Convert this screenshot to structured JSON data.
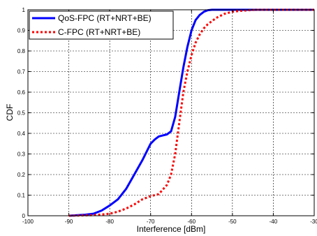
{
  "chart_data": {
    "type": "line",
    "title": "",
    "xlabel": "Interference [dBm]",
    "ylabel": "CDF",
    "xlim": [
      -100,
      -30
    ],
    "ylim": [
      0,
      1
    ],
    "x_ticks": [
      -100,
      -90,
      -80,
      -70,
      -60,
      -50,
      -40,
      -30
    ],
    "x_tick_labels": [
      "-100",
      "-90",
      "-80",
      "-70",
      "-60",
      "-50",
      "-40",
      "-30"
    ],
    "y_ticks": [
      0,
      0.1,
      0.2,
      0.3,
      0.4,
      0.5,
      0.6,
      0.7,
      0.8,
      0.9,
      1
    ],
    "y_tick_labels": [
      "0",
      "0.1",
      "0.2",
      "0.3",
      "0.4",
      "0.5",
      "0.6",
      "0.7",
      "0.8",
      "0.9",
      "1"
    ],
    "grid": true,
    "legend_position": "top-left",
    "series": [
      {
        "name": "QoS-FPC (RT+NRT+BE)",
        "color": "#0000ff",
        "style": "solid",
        "x": [
          -90,
          -86,
          -84,
          -82,
          -80,
          -78,
          -76,
          -74,
          -72,
          -70,
          -69,
          -68,
          -67,
          -66,
          -65,
          -64,
          -63,
          -62,
          -61,
          -60,
          -59,
          -58,
          -57,
          -56,
          -55,
          -54,
          -52,
          -50,
          -45,
          -40,
          -35,
          -30
        ],
        "y": [
          0,
          0.005,
          0.01,
          0.025,
          0.05,
          0.08,
          0.13,
          0.2,
          0.27,
          0.35,
          0.37,
          0.385,
          0.39,
          0.395,
          0.41,
          0.48,
          0.6,
          0.72,
          0.82,
          0.9,
          0.95,
          0.975,
          0.99,
          0.998,
          1,
          1,
          1,
          1,
          1,
          1,
          1,
          1
        ]
      },
      {
        "name": "C-FPC (RT+NRT+BE)",
        "color": "#ff0000",
        "style": "dotted",
        "x": [
          -90,
          -84,
          -82,
          -80,
          -78,
          -76,
          -74,
          -72,
          -70,
          -68,
          -66,
          -65,
          -64,
          -63,
          -62,
          -61,
          -60,
          -59,
          -58,
          -57,
          -56,
          -55,
          -54,
          -53,
          -52,
          -50,
          -48,
          -46,
          -44,
          -42,
          -40,
          -35,
          -30
        ],
        "y": [
          0,
          0.003,
          0.006,
          0.01,
          0.02,
          0.035,
          0.055,
          0.08,
          0.095,
          0.105,
          0.15,
          0.2,
          0.3,
          0.45,
          0.6,
          0.7,
          0.78,
          0.84,
          0.88,
          0.91,
          0.93,
          0.945,
          0.96,
          0.97,
          0.98,
          0.99,
          0.995,
          0.998,
          1,
          1,
          1,
          1,
          1
        ]
      }
    ]
  }
}
